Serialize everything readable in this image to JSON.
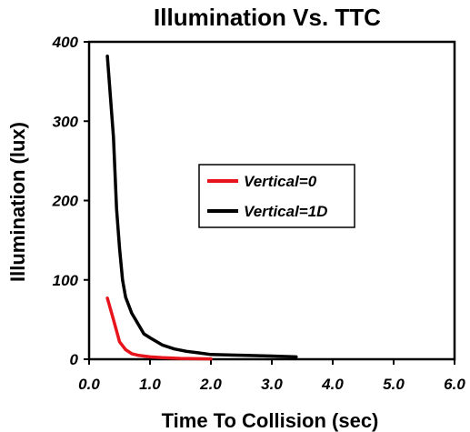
{
  "chart_data": {
    "type": "line",
    "title": "Illumination Vs. TTC",
    "xlabel": "Time To Collision (sec)",
    "ylabel": "Illumination (lux)",
    "xlim": [
      0,
      6
    ],
    "ylim": [
      0,
      400
    ],
    "x_ticks": [
      "0.0",
      "1.0",
      "2.0",
      "3.0",
      "4.0",
      "5.0",
      "6.0"
    ],
    "y_ticks": [
      "0",
      "100",
      "200",
      "300",
      "400"
    ],
    "grid": false,
    "legend_position": "center-right",
    "series": [
      {
        "name": "Vertical=0",
        "color": "#e8141c",
        "x": [
          0.3,
          0.4,
          0.5,
          0.6,
          0.7,
          0.8,
          1.0,
          1.2,
          1.5,
          2.0
        ],
        "y": [
          77,
          50,
          22,
          12,
          7,
          5,
          3,
          2,
          1,
          0.5
        ]
      },
      {
        "name": "Vertical=1D",
        "color": "#000000",
        "x": [
          0.3,
          0.4,
          0.45,
          0.5,
          0.55,
          0.6,
          0.7,
          0.8,
          0.9,
          1.0,
          1.2,
          1.4,
          1.6,
          1.8,
          2.0,
          2.5,
          3.0,
          3.4
        ],
        "y": [
          382,
          280,
          190,
          140,
          100,
          78,
          58,
          45,
          32,
          27,
          18,
          13,
          10,
          8,
          6,
          5,
          4,
          3
        ]
      }
    ]
  }
}
